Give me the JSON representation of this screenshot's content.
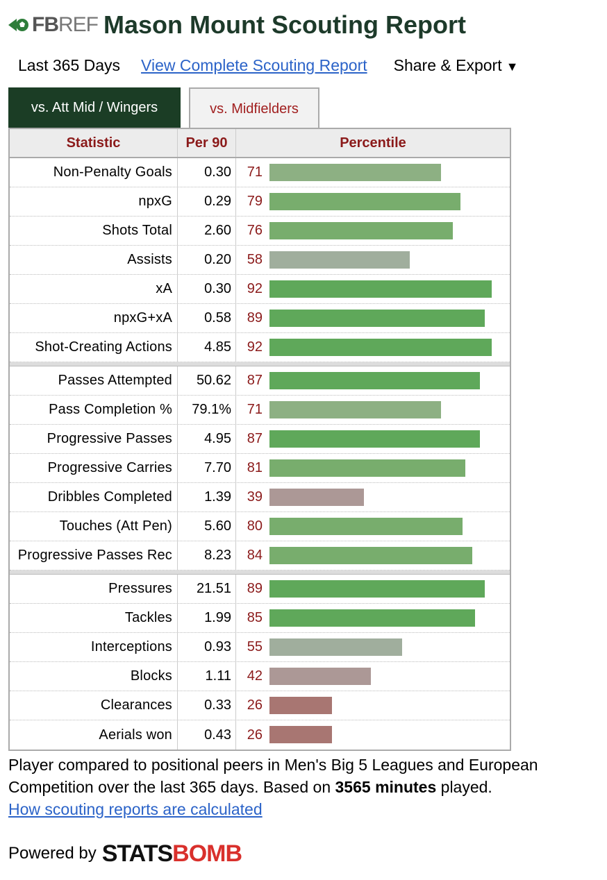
{
  "header": {
    "logo_fb": "FB",
    "logo_ref": "REF",
    "title": "Mason Mount Scouting Report"
  },
  "subbar": {
    "period": "Last 365 Days",
    "complete_link": "View Complete Scouting Report",
    "share": "Share & Export",
    "share_caret": "▼"
  },
  "tabs": [
    {
      "label": "vs. Att Mid / Wingers",
      "active": true
    },
    {
      "label": "vs. Midfielders",
      "active": false
    }
  ],
  "table": {
    "headers": {
      "stat": "Statistic",
      "per90": "Per 90",
      "pct": "Percentile"
    },
    "groups": [
      [
        {
          "stat": "Non-Penalty Goals",
          "per90": "0.30",
          "pct": 71
        },
        {
          "stat": "npxG",
          "per90": "0.29",
          "pct": 79
        },
        {
          "stat": "Shots Total",
          "per90": "2.60",
          "pct": 76
        },
        {
          "stat": "Assists",
          "per90": "0.20",
          "pct": 58
        },
        {
          "stat": "xA",
          "per90": "0.30",
          "pct": 92
        },
        {
          "stat": "npxG+xA",
          "per90": "0.58",
          "pct": 89
        },
        {
          "stat": "Shot-Creating Actions",
          "per90": "4.85",
          "pct": 92
        }
      ],
      [
        {
          "stat": "Passes Attempted",
          "per90": "50.62",
          "pct": 87
        },
        {
          "stat": "Pass Completion %",
          "per90": "79.1%",
          "pct": 71
        },
        {
          "stat": "Progressive Passes",
          "per90": "4.95",
          "pct": 87
        },
        {
          "stat": "Progressive Carries",
          "per90": "7.70",
          "pct": 81
        },
        {
          "stat": "Dribbles Completed",
          "per90": "1.39",
          "pct": 39
        },
        {
          "stat": "Touches (Att Pen)",
          "per90": "5.60",
          "pct": 80
        },
        {
          "stat": "Progressive Passes Rec",
          "per90": "8.23",
          "pct": 84
        }
      ],
      [
        {
          "stat": "Pressures",
          "per90": "21.51",
          "pct": 89
        },
        {
          "stat": "Tackles",
          "per90": "1.99",
          "pct": 85
        },
        {
          "stat": "Interceptions",
          "per90": "0.93",
          "pct": 55
        },
        {
          "stat": "Blocks",
          "per90": "1.11",
          "pct": 42
        },
        {
          "stat": "Clearances",
          "per90": "0.33",
          "pct": 26
        },
        {
          "stat": "Aerials won",
          "per90": "0.43",
          "pct": 26
        }
      ]
    ]
  },
  "footer": {
    "note_pre": "Player compared to positional peers in Men's Big 5 Leagues and European Competition over the last 365 days. Based on ",
    "note_bold": "3565 minutes",
    "note_post": " played.",
    "how_link": "How scouting reports are calculated"
  },
  "powered": {
    "label": "Powered by",
    "brand_a": "STATS",
    "brand_b": "BOMB"
  },
  "colors": {
    "title_green": "#1d3a2a",
    "tab_active_bg": "#1b3d25",
    "stat_red": "#8b1a1a",
    "link_blue": "#2b63c8"
  }
}
